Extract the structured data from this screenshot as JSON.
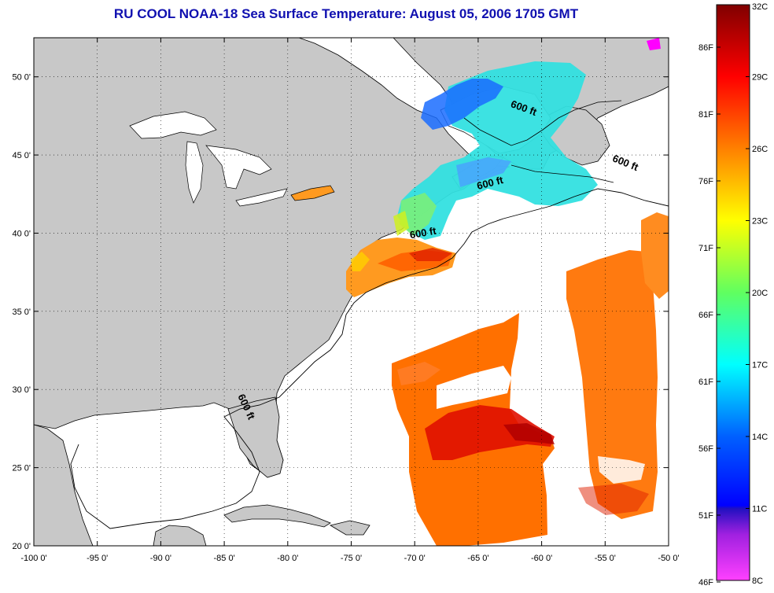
{
  "title": "RU COOL  NOAA-18  Sea Surface Temperature:  August 05, 2006 1705 GMT",
  "map": {
    "lon_range": [
      -100,
      -50
    ],
    "lat_range": [
      20,
      52.5
    ],
    "lon_ticks": [
      {
        "value": -100,
        "label": "-100 0'"
      },
      {
        "value": -95,
        "label": "-95 0'"
      },
      {
        "value": -90,
        "label": "-90 0'"
      },
      {
        "value": -85,
        "label": "-85 0'"
      },
      {
        "value": -80,
        "label": "-80 0'"
      },
      {
        "value": -75,
        "label": "-75 0'"
      },
      {
        "value": -70,
        "label": "-70 0'"
      },
      {
        "value": -65,
        "label": "-65 0'"
      },
      {
        "value": -60,
        "label": "-60 0'"
      },
      {
        "value": -55,
        "label": "-55 0'"
      },
      {
        "value": -50,
        "label": "-50 0'"
      }
    ],
    "lat_ticks": [
      {
        "value": 20,
        "label": "20 0'"
      },
      {
        "value": 25,
        "label": "25 0'"
      },
      {
        "value": 30,
        "label": "30 0'"
      },
      {
        "value": 35,
        "label": "35 0'"
      },
      {
        "value": 40,
        "label": "40 0'"
      },
      {
        "value": 45,
        "label": "45 0'"
      },
      {
        "value": 50,
        "label": "50 0'"
      }
    ],
    "grid": "dotted",
    "land_color": "#c8c8c8",
    "water_color": "#ffffff",
    "contour_labels": [
      {
        "text": "600 ft",
        "lon": -61.5,
        "lat": 47.8,
        "angle": 20
      },
      {
        "text": "600 ft",
        "lon": -53.5,
        "lat": 44.3,
        "angle": 22
      },
      {
        "text": "600 ft",
        "lon": -64.0,
        "lat": 43.0,
        "angle": -14
      },
      {
        "text": "600 ft",
        "lon": -69.3,
        "lat": 39.8,
        "angle": -10
      },
      {
        "text": "600 ft",
        "lon": -83.5,
        "lat": 28.8,
        "angle": 65
      }
    ]
  },
  "colorbar": {
    "celsius_labels": [
      "32C",
      "29C",
      "26C",
      "23C",
      "20C",
      "17C",
      "14C",
      "11C",
      "8C"
    ],
    "fahrenheit_labels": [
      "86F",
      "81F",
      "76F",
      "71F",
      "66F",
      "61F",
      "56F",
      "51F",
      "46F"
    ],
    "colors": [
      "#800000",
      "#ff0000",
      "#ff8000",
      "#ffff00",
      "#80ff80",
      "#00ffff",
      "#0080ff",
      "#0000ff",
      "#ff00ff"
    ],
    "range_c": [
      8,
      32
    ]
  }
}
